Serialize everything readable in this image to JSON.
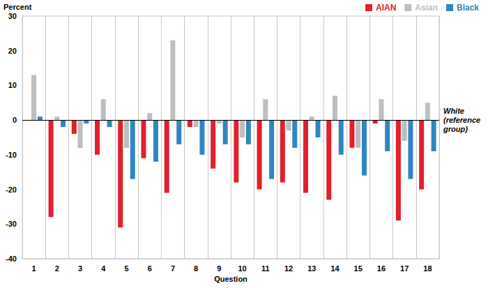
{
  "chart_data": {
    "type": "bar",
    "y_label": "Percent",
    "x_label": "Question",
    "categories": [
      "1",
      "2",
      "3",
      "4",
      "5",
      "6",
      "7",
      "8",
      "9",
      "10",
      "11",
      "12",
      "13",
      "14",
      "15",
      "16",
      "17",
      "18"
    ],
    "series": [
      {
        "name": "AIAN",
        "color": "#e2202b",
        "values": [
          0,
          -28,
          -4,
          -10,
          -31,
          -11,
          -21,
          -2,
          -14,
          -18,
          -20,
          -18,
          -21,
          -23,
          -8,
          -1,
          -29,
          -20
        ]
      },
      {
        "name": "Asian",
        "color": "#bebec0",
        "values": [
          13,
          1,
          -8,
          6,
          -8,
          2,
          23,
          -2,
          -1,
          -5,
          6,
          -3,
          1,
          7,
          -8,
          6,
          -6,
          5
        ]
      },
      {
        "name": "Black",
        "color": "#2f86c2",
        "values": [
          1,
          -2,
          -1,
          -2,
          -17,
          -12,
          -7,
          -10,
          -7,
          -7,
          -17,
          -8,
          -5,
          -10,
          -16,
          -9,
          -17,
          -9
        ]
      }
    ],
    "ylim": [
      -40,
      30
    ],
    "yticks": [
      -40,
      -30,
      -20,
      -10,
      0,
      10,
      20,
      30
    ],
    "grid": true,
    "legend": "top-right",
    "annotations": [
      {
        "y": 0,
        "text": "White (reference group)"
      }
    ]
  }
}
